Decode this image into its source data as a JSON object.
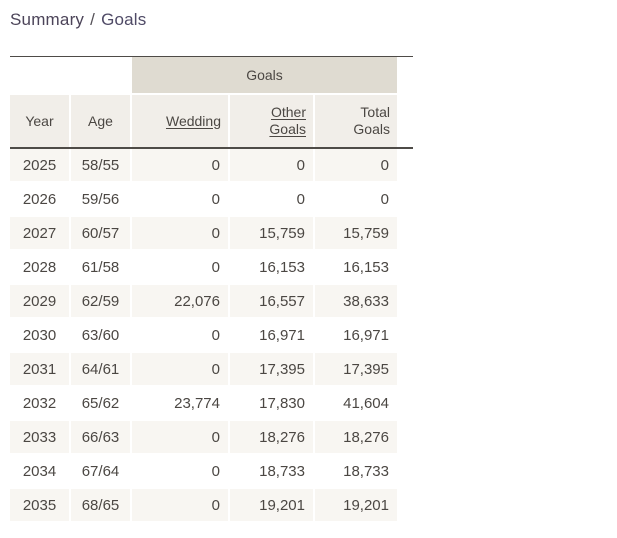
{
  "breadcrumb": {
    "parent": "Summary",
    "separator": "/",
    "current": "Goals"
  },
  "table": {
    "group_header": "Goals",
    "columns": [
      {
        "key": "year",
        "label": "Year",
        "sortable": false
      },
      {
        "key": "age",
        "label": "Age",
        "sortable": false
      },
      {
        "key": "wedding",
        "label": "Wedding",
        "sortable": true
      },
      {
        "key": "other-goals",
        "label": "Other Goals",
        "sortable": true
      },
      {
        "key": "total-goals",
        "label": "Total Goals",
        "sortable": false
      }
    ],
    "rows": [
      [
        "2025",
        "58/55",
        "0",
        "0",
        "0"
      ],
      [
        "2026",
        "59/56",
        "0",
        "0",
        "0"
      ],
      [
        "2027",
        "60/57",
        "0",
        "15,759",
        "15,759"
      ],
      [
        "2028",
        "61/58",
        "0",
        "16,153",
        "16,153"
      ],
      [
        "2029",
        "62/59",
        "22,076",
        "16,557",
        "38,633"
      ],
      [
        "2030",
        "63/60",
        "0",
        "16,971",
        "16,971"
      ],
      [
        "2031",
        "64/61",
        "0",
        "17,395",
        "17,395"
      ],
      [
        "2032",
        "65/62",
        "23,774",
        "17,830",
        "41,604"
      ],
      [
        "2033",
        "66/63",
        "0",
        "18,276",
        "18,276"
      ],
      [
        "2034",
        "67/64",
        "0",
        "18,733",
        "18,733"
      ],
      [
        "2035",
        "68/65",
        "0",
        "19,201",
        "19,201"
      ]
    ]
  },
  "colors": {
    "title_parent": "#4c4459",
    "title_current": "#4f4a66",
    "title_separator": "#555158",
    "rule": "#4e4b47",
    "group_header_bg": "#dfdbd1",
    "column_header_bg": "#f1eee9",
    "row_stripe_bg": "#f8f6f2",
    "text": "#4b4743"
  }
}
